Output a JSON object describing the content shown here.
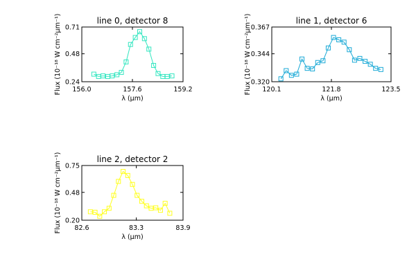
{
  "chart_data": [
    {
      "type": "line",
      "title": "line 0, detector 8",
      "xlabel": "λ (μm)",
      "ylabel": "Flux (10⁻¹⁸ W cm⁻²μm⁻¹)",
      "xlim": [
        156.0,
        159.2
      ],
      "ylim": [
        0.24,
        0.71
      ],
      "xticks": [
        "156.0",
        "157.6",
        "159.2"
      ],
      "yticks": [
        "0.24",
        "0.48",
        "0.71"
      ],
      "color": "#33e6c0",
      "marker": "open-square",
      "x": [
        156.38,
        156.53,
        156.67,
        156.82,
        156.96,
        157.11,
        157.25,
        157.4,
        157.54,
        157.69,
        157.83,
        157.98,
        158.12,
        158.27,
        158.41,
        158.56,
        158.7,
        158.85
      ],
      "y": [
        0.305,
        0.285,
        0.29,
        0.285,
        0.29,
        0.3,
        0.32,
        0.41,
        0.56,
        0.62,
        0.67,
        0.61,
        0.52,
        0.38,
        0.31,
        0.285,
        0.285,
        0.29
      ]
    },
    {
      "type": "line",
      "title": "line 1, detector 6",
      "xlabel": "λ (μm)",
      "ylabel": "Flux (10⁻¹⁸ W cm⁻²μm⁻¹)",
      "xlim": [
        120.1,
        123.5
      ],
      "ylim": [
        0.32,
        0.367
      ],
      "xticks": [
        "120.1",
        "121.8",
        "123.5"
      ],
      "yticks": [
        "0.320",
        "0.344",
        "0.367"
      ],
      "color": "#1aa9d6",
      "marker": "open-square",
      "x": [
        120.36,
        120.51,
        120.66,
        120.81,
        120.96,
        121.11,
        121.26,
        121.41,
        121.56,
        121.71,
        121.86,
        122.01,
        122.16,
        122.31,
        122.46,
        122.61,
        122.76,
        122.91,
        123.06,
        123.21
      ],
      "y": [
        0.3225,
        0.3295,
        0.3255,
        0.3265,
        0.3395,
        0.3315,
        0.331,
        0.3365,
        0.338,
        0.349,
        0.358,
        0.356,
        0.354,
        0.3475,
        0.3385,
        0.34,
        0.3375,
        0.335,
        0.3315,
        0.3305
      ]
    },
    {
      "type": "line",
      "title": "line 2, detector 2",
      "xlabel": "λ (μm)",
      "ylabel": "Flux (10⁻¹⁸ W cm⁻²μm⁻¹)",
      "xlim": [
        82.6,
        83.9
      ],
      "ylim": [
        0.2,
        0.75
      ],
      "xticks": [
        "82.6",
        "83.3",
        "83.9"
      ],
      "yticks": [
        "0.20",
        "0.48",
        "0.75"
      ],
      "color": "#ffff1f",
      "marker": "open-square",
      "x": [
        82.71,
        82.77,
        82.83,
        82.89,
        82.95,
        83.01,
        83.07,
        83.13,
        83.19,
        83.25,
        83.31,
        83.37,
        83.43,
        83.49,
        83.55,
        83.61,
        83.67,
        83.73
      ],
      "y": [
        0.285,
        0.28,
        0.24,
        0.285,
        0.32,
        0.45,
        0.59,
        0.69,
        0.65,
        0.56,
        0.45,
        0.39,
        0.345,
        0.32,
        0.325,
        0.3,
        0.37,
        0.27
      ]
    }
  ]
}
